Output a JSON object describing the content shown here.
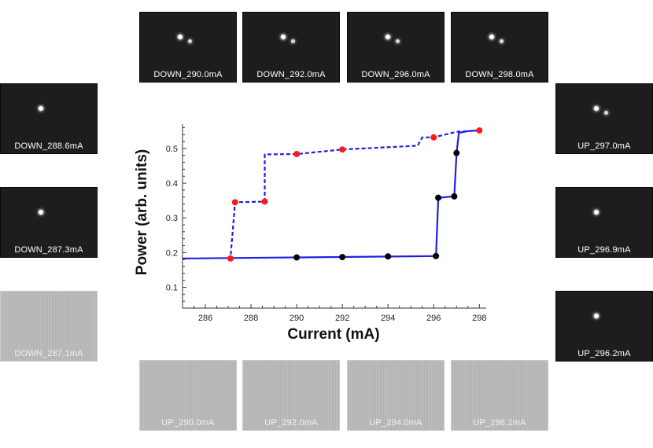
{
  "thumbnails": {
    "top": [
      {
        "label": "DOWN_290.0mA",
        "spots": 2
      },
      {
        "label": "DOWN_292.0mA",
        "spots": 2
      },
      {
        "label": "DOWN_296.0mA",
        "spots": 2
      },
      {
        "label": "DOWN_298.0mA",
        "spots": 2
      }
    ],
    "left": [
      {
        "label": "DOWN_288.6mA",
        "spots": 1
      },
      {
        "label": "DOWN_287.3mA",
        "spots": 1
      },
      {
        "label": "DOWN_287.1mA",
        "spots": 0
      }
    ],
    "right": [
      {
        "label": "UP_297.0mA",
        "spots": 2
      },
      {
        "label": "UP_296.9mA",
        "spots": 1
      },
      {
        "label": "UP_296.2mA",
        "spots": 1
      }
    ],
    "bottom": [
      {
        "label": "UP_290.0mA",
        "spots": 0
      },
      {
        "label": "UP_292.0mA",
        "spots": 0
      },
      {
        "label": "UP_294.0mA",
        "spots": 0
      },
      {
        "label": "UP_296.1mA",
        "spots": 0
      }
    ]
  },
  "chart_data": {
    "type": "line",
    "xlabel": "Current (mA)",
    "ylabel": "Power (arb. units)",
    "xlim": [
      285,
      298.3
    ],
    "ylim": [
      0.04,
      0.57
    ],
    "xticks": [
      286,
      288,
      290,
      292,
      294,
      296,
      298
    ],
    "yticks": [
      0.1,
      0.2,
      0.3,
      0.4,
      0.5
    ],
    "series": [
      {
        "style": "solid",
        "color": "#1f1fe0",
        "x": [
          285,
          296.1,
          296.2,
          296.9,
          297.0,
          297.1,
          297.5,
          298.0
        ],
        "y": [
          0.183,
          0.19,
          0.358,
          0.362,
          0.485,
          0.545,
          0.55,
          0.552
        ],
        "markers": {
          "color": "#000000",
          "x": [
            290,
            292,
            294,
            296.1,
            296.2,
            296.9,
            297.0
          ],
          "y": [
            0.186,
            0.187,
            0.189,
            0.19,
            0.358,
            0.362,
            0.487
          ]
        }
      },
      {
        "style": "dashed",
        "color": "#1f1fe0",
        "x": [
          298.0,
          297.0,
          296.0,
          295.5,
          295.3,
          292.0,
          290.0,
          288.6,
          288.6,
          287.3,
          287.1
        ],
        "y": [
          0.552,
          0.548,
          0.532,
          0.532,
          0.508,
          0.497,
          0.484,
          0.483,
          0.347,
          0.345,
          0.183
        ],
        "markers": {
          "color": "#ff1a1a",
          "x": [
            298.0,
            296.0,
            292.0,
            290.0,
            288.6,
            287.3,
            287.1
          ],
          "y": [
            0.552,
            0.532,
            0.497,
            0.484,
            0.347,
            0.345,
            0.183
          ]
        }
      }
    ]
  }
}
